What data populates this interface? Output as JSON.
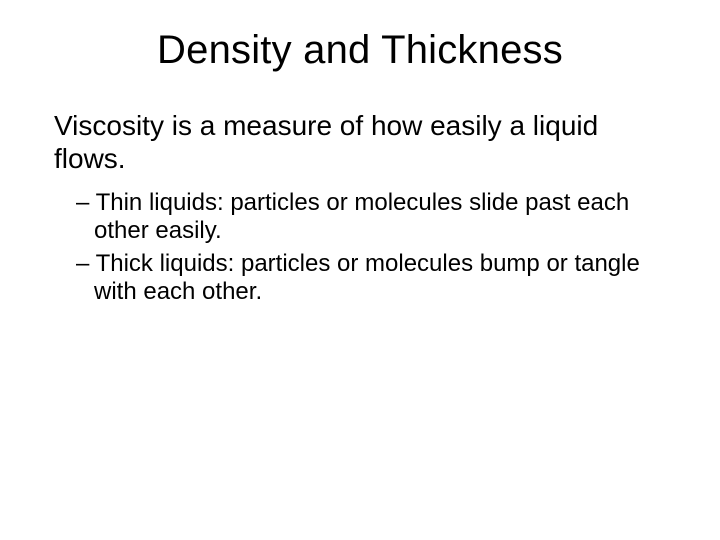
{
  "slide": {
    "title": "Density and Thickness",
    "intro": "Viscosity is a measure of how easily a liquid flows.",
    "bullets": [
      "Thin liquids: particles or molecules slide past each other easily.",
      "Thick liquids: particles or molecules bump or tangle with each other."
    ],
    "style": {
      "background_color": "#ffffff",
      "text_color": "#000000",
      "title_fontsize": 40,
      "body_fontsize": 28,
      "bullet_fontsize": 24,
      "font_family": "Arial"
    }
  }
}
